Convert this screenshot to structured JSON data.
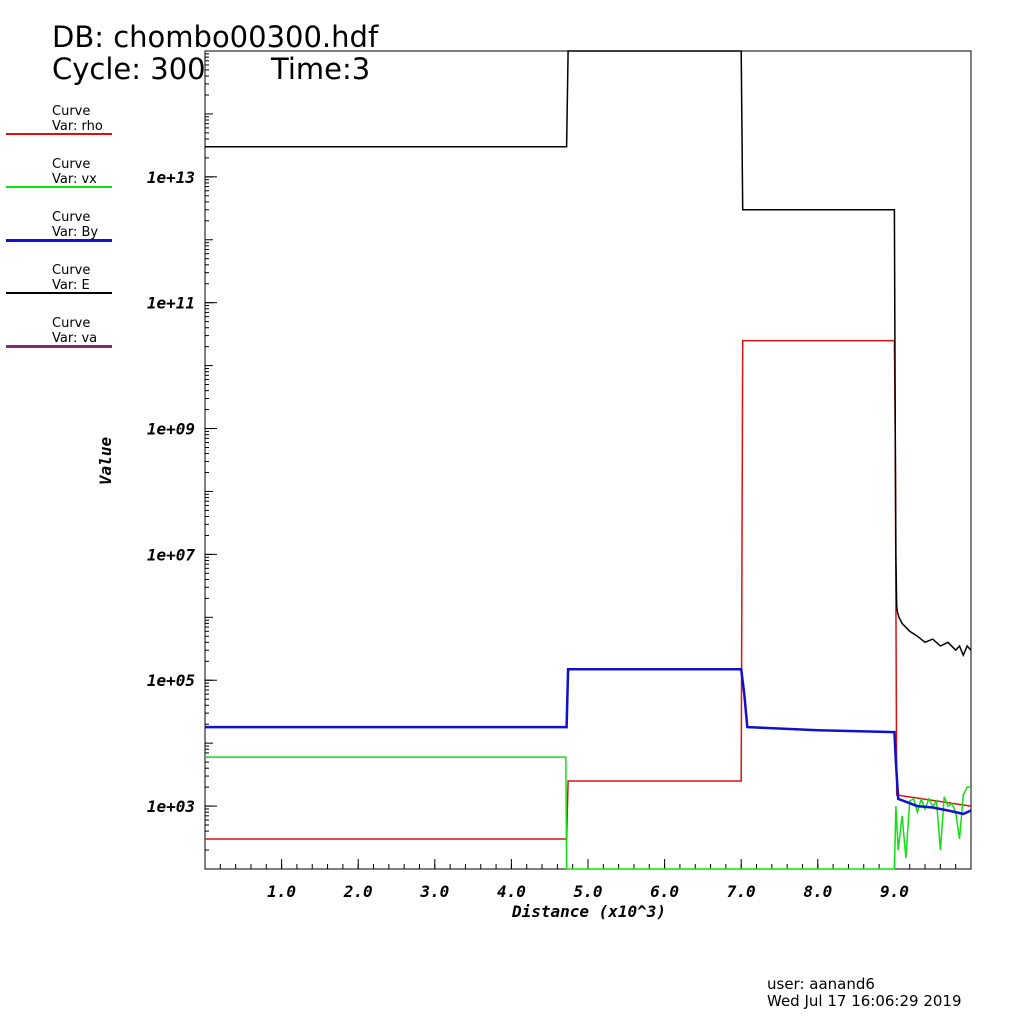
{
  "header": {
    "db_label": "DB: chombo00300.hdf",
    "cycle_label": "Cycle: 300",
    "time_label": "Time:3"
  },
  "legend": [
    {
      "line1": "Curve",
      "line2": "Var: rho",
      "color": "#e01010"
    },
    {
      "line1": "Curve",
      "line2": "Var: vx",
      "color": "#10e010"
    },
    {
      "line1": "Curve",
      "line2": "Var: By",
      "color": "#1010d0"
    },
    {
      "line1": "Curve",
      "line2": "Var: E",
      "color": "#000000"
    },
    {
      "line1": "Curve",
      "line2": "Var: va",
      "color": "#8a2a6a"
    }
  ],
  "footer": {
    "user": "user: aanand6",
    "date": "Wed Jul 17 16:06:29 2019"
  },
  "chart_data": {
    "type": "line",
    "xlabel": "Distance (x10^3)",
    "ylabel": "Value",
    "x_scale": "linear",
    "y_scale": "log",
    "xlim": [
      0,
      10
    ],
    "ylim": [
      100,
      1000000000000000.0
    ],
    "x_ticks": [
      "1.0",
      "2.0",
      "3.0",
      "4.0",
      "5.0",
      "6.0",
      "7.0",
      "8.0",
      "9.0"
    ],
    "y_ticks": [
      "1e+03",
      "1e+05",
      "1e+07",
      "1e+09",
      "1e+11",
      "1e+13"
    ],
    "series": [
      {
        "name": "rho",
        "color": "#e01010",
        "x": [
          0,
          4.7,
          4.72,
          4.74,
          7.0,
          7.02,
          7.04,
          9.0,
          9.01,
          9.03,
          10.0
        ],
        "y": [
          300,
          300,
          300,
          2500,
          2500,
          25000000000.0,
          25000000000.0,
          25000000000.0,
          1000000000.0,
          1500,
          1000
        ]
      },
      {
        "name": "vx",
        "color": "#10e010",
        "x": [
          0,
          4.7,
          4.71,
          4.72,
          9.0,
          9.02,
          9.05,
          9.1,
          9.15,
          9.2,
          9.25,
          9.3,
          9.35,
          9.4,
          9.45,
          9.5,
          9.55,
          9.6,
          9.65,
          9.7,
          9.75,
          9.8,
          9.85,
          9.9,
          9.95,
          10.0
        ],
        "y": [
          6000,
          6000,
          6000,
          100,
          100,
          1000,
          200,
          700,
          150,
          1200,
          1300,
          800,
          1300,
          900,
          1300,
          1000,
          1200,
          200,
          1400,
          1000,
          1100,
          800,
          300,
          1500,
          2000,
          2000
        ]
      },
      {
        "name": "By",
        "color": "#1010d0",
        "x": [
          0,
          4.7,
          4.72,
          4.74,
          7.0,
          7.04,
          7.08,
          8.0,
          9.0,
          9.02,
          9.05,
          9.3,
          9.5,
          9.7,
          9.9,
          10.0
        ],
        "y": [
          18000,
          18000,
          18000,
          150000,
          150000,
          60000,
          18000,
          16000,
          15000,
          5000,
          1300,
          1000,
          950,
          850,
          750,
          850
        ]
      },
      {
        "name": "E",
        "color": "#000000",
        "x": [
          0,
          4.7,
          4.72,
          4.74,
          7.0,
          7.02,
          9.0,
          9.01,
          9.02,
          9.03,
          9.04,
          9.06,
          9.1,
          9.2,
          9.3,
          9.4,
          9.5,
          9.6,
          9.7,
          9.8,
          9.85,
          9.9,
          9.95,
          10.0
        ],
        "y": [
          30000000000000.0,
          30000000000000.0,
          30000000000000.0,
          1000000000000000.0,
          1000000000000000.0,
          3000000000000.0,
          3000000000000.0,
          1500000000.0,
          10000000.0,
          1500000.0,
          1200000.0,
          1000000.0,
          800000.0,
          600000.0,
          500000.0,
          400000.0,
          450000.0,
          350000.0,
          400000.0,
          300000.0,
          350000.0,
          250000.0,
          350000.0,
          300000.0
        ]
      },
      {
        "name": "va",
        "color": "#8a2a6a",
        "x": [],
        "y": []
      }
    ]
  }
}
